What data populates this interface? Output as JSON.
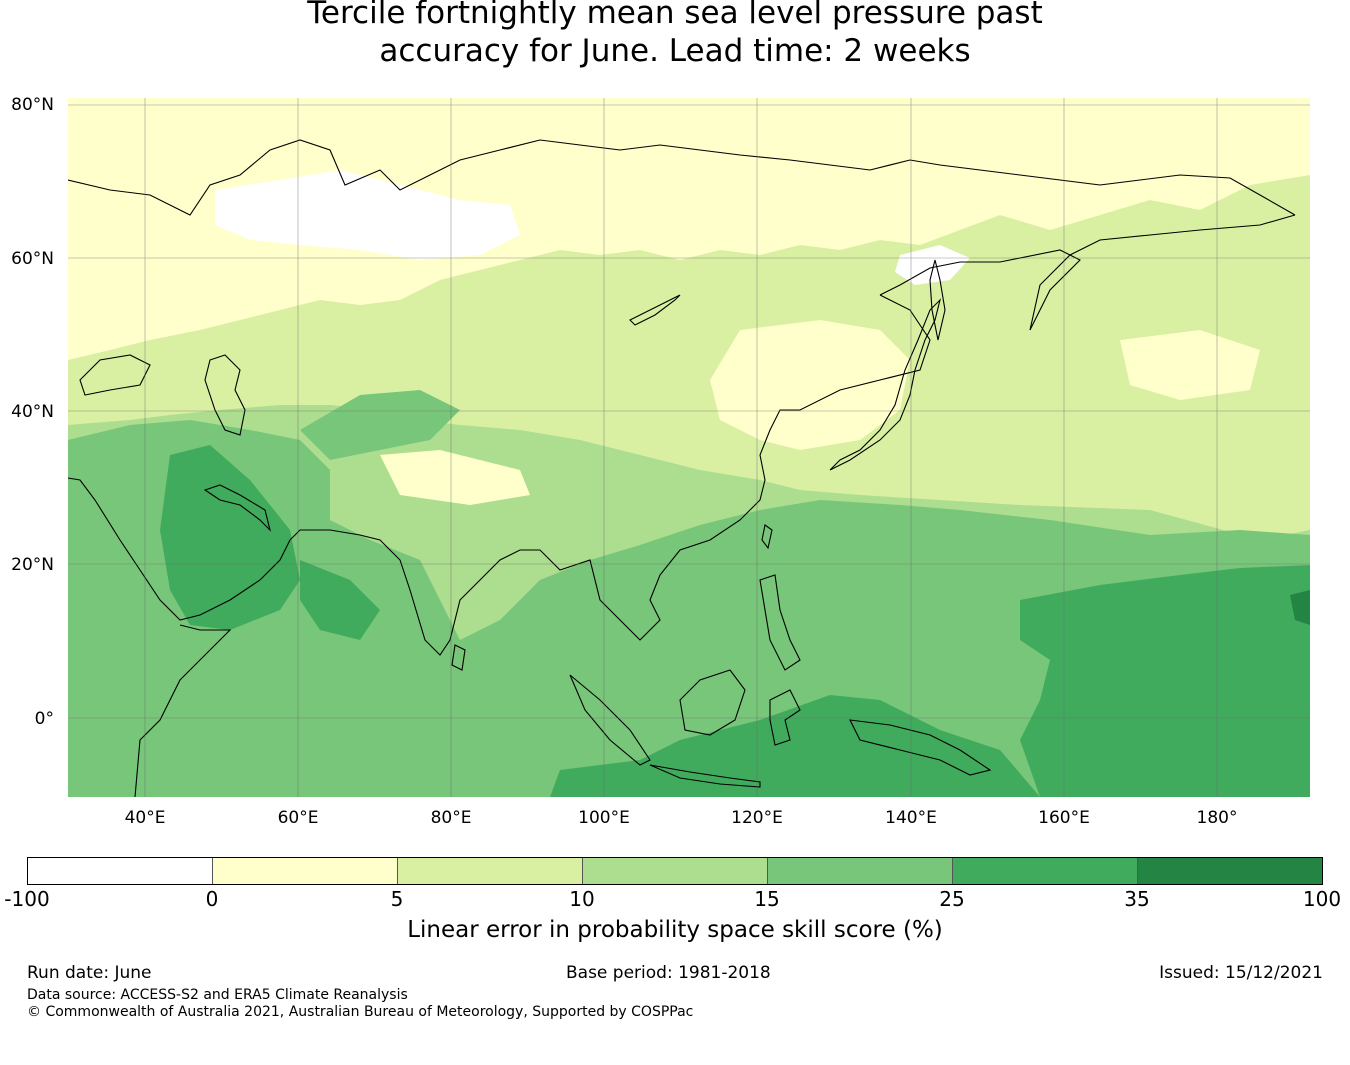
{
  "title_line1": "Tercile fortnightly mean sea level pressure past",
  "title_line2": "accuracy for June. Lead time: 2 weeks",
  "map": {
    "lat_labels": [
      "80°N",
      "60°N",
      "40°N",
      "20°N",
      "0°"
    ],
    "lon_labels": [
      "40°E",
      "60°E",
      "80°E",
      "100°E",
      "120°E",
      "140°E",
      "160°E",
      "180°"
    ],
    "lon_range_deg_east": [
      30,
      192
    ],
    "lat_range_deg": [
      -10,
      81
    ],
    "regions": [
      {
        "name": "White (below 0)",
        "color": "#ffffff"
      },
      {
        "name": "0-5",
        "color": "#ffffcc"
      },
      {
        "name": "5-10",
        "color": "#d9f0a3"
      },
      {
        "name": "10-15",
        "color": "#addd8e"
      },
      {
        "name": "15-25",
        "color": "#78c679"
      },
      {
        "name": "25-35",
        "color": "#41ab5d"
      },
      {
        "name": "35-100",
        "color": "#238443"
      }
    ]
  },
  "colorbar": {
    "label": "Linear error in probability space skill score (%)",
    "ticks": [
      "-100",
      "0",
      "5",
      "10",
      "15",
      "25",
      "35",
      "100"
    ],
    "colors": [
      "#ffffff",
      "#ffffcc",
      "#d9f0a3",
      "#addd8e",
      "#78c679",
      "#41ab5d",
      "#238443"
    ]
  },
  "footer": {
    "run_date": "Run date: June",
    "base_period": "Base period: 1981-2018",
    "issued": "Issued: 15/12/2021",
    "data_source": "Data source: ACCESS-S2 and ERA5 Climate Reanalysis",
    "copyright": "© Commonwealth of Australia 2021, Australian Bureau of Meteorology, Supported by COSPPac"
  }
}
